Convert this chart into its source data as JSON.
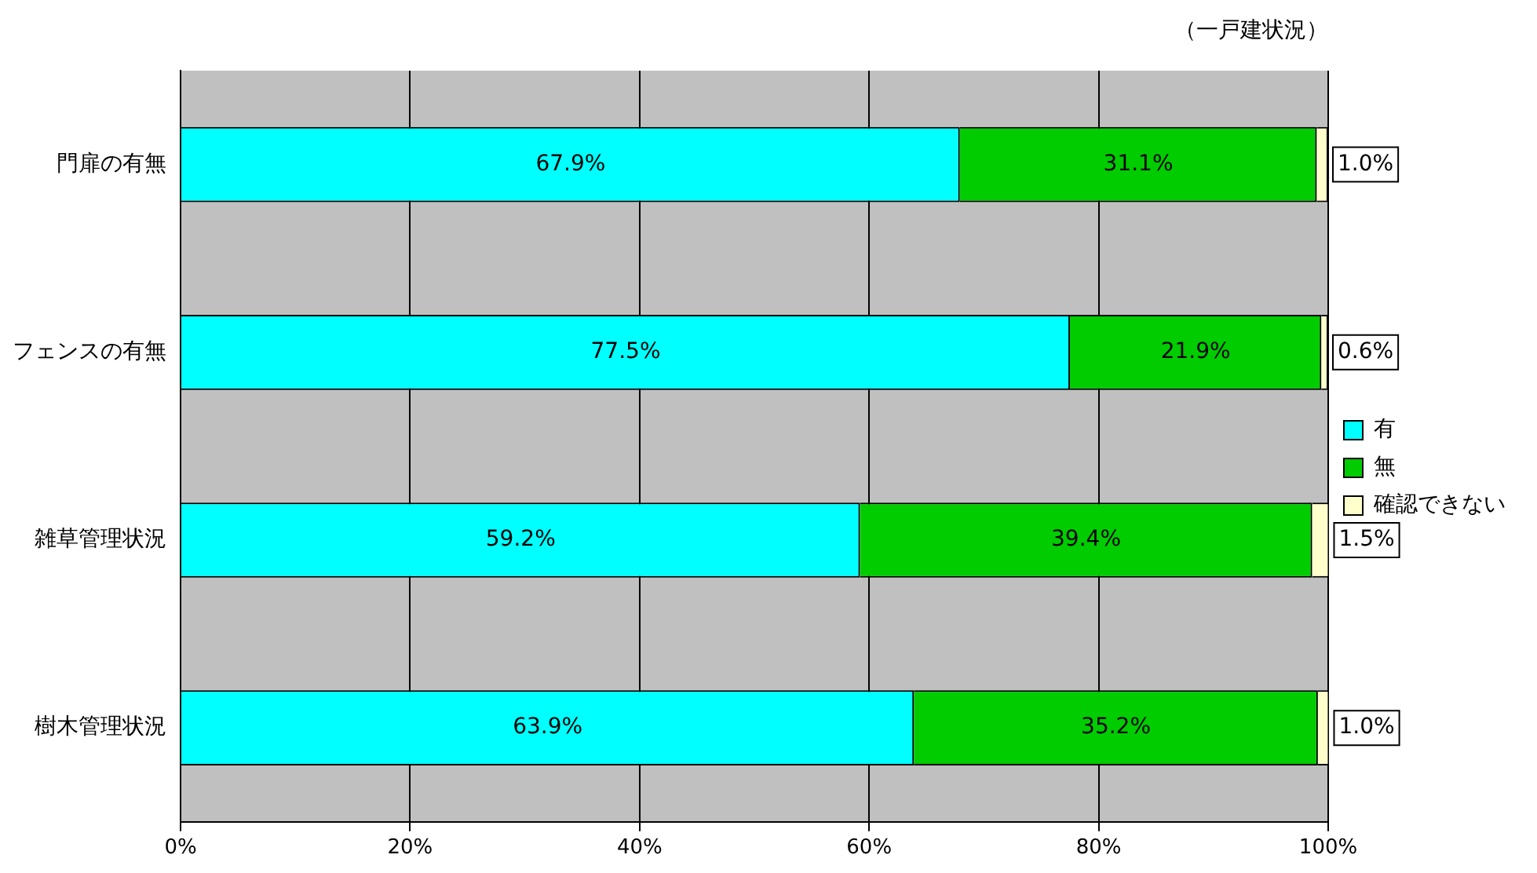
{
  "chart_data": {
    "type": "bar",
    "orientation": "horizontal",
    "stacked": true,
    "annotations": [
      "（一戸建状況）"
    ],
    "categories": [
      "門扉の有無",
      "フェンスの有無",
      "雑草管理状況",
      "樹木管理状況"
    ],
    "series": [
      {
        "name": "有",
        "color": "#00ffff",
        "values": [
          67.9,
          77.5,
          59.2,
          63.9
        ],
        "value_labels": [
          "67.9%",
          "77.5%",
          "59.2%",
          "63.9%"
        ]
      },
      {
        "name": "無",
        "color": "#00cc00",
        "values": [
          31.1,
          21.9,
          39.4,
          35.2
        ],
        "value_labels": [
          "31.1%",
          "21.9%",
          "39.4%",
          "35.2%"
        ]
      },
      {
        "name": "確認できない",
        "color": "#ffffcc",
        "values": [
          1.0,
          0.6,
          1.5,
          1.0
        ],
        "value_labels": [
          "1.0%",
          "0.6%",
          "1.5%",
          "1.0%"
        ]
      }
    ],
    "xlim": [
      0,
      100
    ],
    "xticks": [
      {
        "value": 0,
        "label": "0%"
      },
      {
        "value": 20,
        "label": "20%"
      },
      {
        "value": 40,
        "label": "40%"
      },
      {
        "value": 60,
        "label": "60%"
      },
      {
        "value": 80,
        "label": "80%"
      },
      {
        "value": 100,
        "label": "100%"
      }
    ],
    "grid": "x",
    "legend": "right"
  }
}
